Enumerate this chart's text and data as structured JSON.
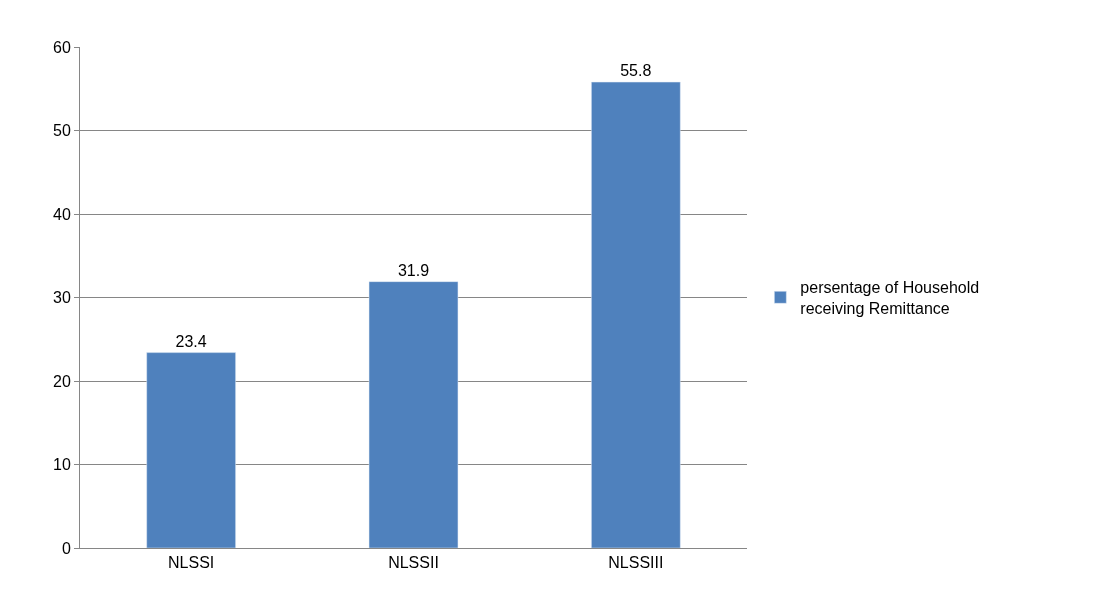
{
  "chart_data": {
    "type": "bar",
    "categories": [
      "NLSSI",
      "NLSSII",
      "NLSSIII"
    ],
    "series": [
      {
        "name": "persentage of Household receiving Remittance",
        "color": "#4f81bd",
        "values": [
          23.4,
          31.9,
          55.8
        ]
      }
    ],
    "ylim": [
      0,
      60
    ],
    "yticks": [
      0,
      10,
      20,
      30,
      40,
      50,
      60
    ],
    "grid": "y",
    "legend": "right",
    "data_labels": true
  }
}
